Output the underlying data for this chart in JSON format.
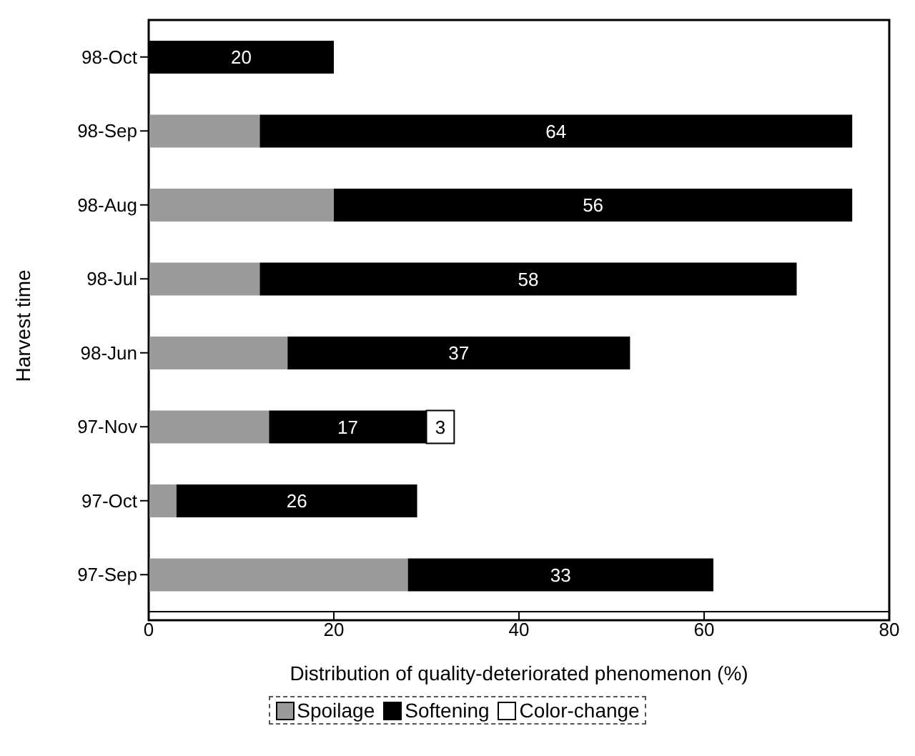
{
  "chart_data": {
    "type": "bar",
    "orientation": "horizontal",
    "stacked": true,
    "xlabel": "Distribution of quality-deteriorated phenomenon (%)",
    "ylabel": "Harvest time",
    "categories": [
      "98-Oct",
      "98-Sep",
      "98-Aug",
      "98-Jul",
      "98-Jun",
      "97-Nov",
      "97-Oct",
      "97-Sep"
    ],
    "series": [
      {
        "name": "Spoilage",
        "color": "#9a9a9a",
        "values": [
          0,
          12,
          20,
          12,
          15,
          13,
          3,
          28
        ]
      },
      {
        "name": "Softening",
        "color": "#000000",
        "values": [
          20,
          64,
          56,
          58,
          37,
          17,
          26,
          33
        ],
        "value_labels": [
          "20",
          "64",
          "56",
          "58",
          "37",
          "17",
          "26",
          "33"
        ]
      },
      {
        "name": "Color-change",
        "color": "#ffffff",
        "values": [
          0,
          0,
          0,
          0,
          0,
          3,
          0,
          0
        ],
        "value_labels": [
          null,
          null,
          null,
          null,
          null,
          "3",
          null,
          null
        ]
      }
    ],
    "xlim": [
      0,
      80
    ],
    "xticks": [
      0,
      20,
      40,
      60,
      80
    ],
    "grid": false,
    "legend": "bottom"
  }
}
